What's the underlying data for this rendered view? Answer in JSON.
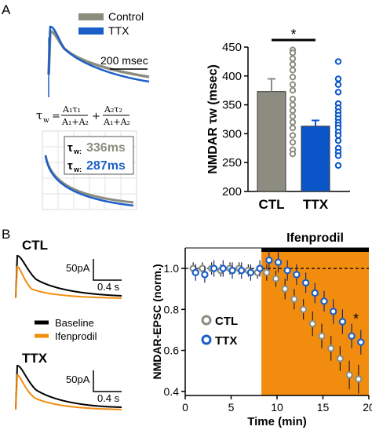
{
  "colors": {
    "control": "#8c8c7f",
    "ttx": "#1a5fc8",
    "baseline": "#000000",
    "ifenprodil": "#f28c0f",
    "ctl_bar": "#8c8c80",
    "ttx_bar": "#0a56c8",
    "box_grid": "#d9d9d9"
  },
  "panel_a": {
    "label": "A",
    "legend": {
      "control": "Control",
      "ttx": "TTX"
    },
    "scalebar": "200 msec",
    "formula": {
      "lhs": "τ",
      "lhs_sub": "w",
      "eq": "=",
      "t1_num": "A₁τ₁",
      "t1_den": "A₁+A₂",
      "plus": "+",
      "t2_num": "A₂τ₂",
      "t2_den": "A₁+A₂"
    },
    "decay_box": {
      "tau_prefix": "τ",
      "tau_sub": "w:",
      "ctl_value": "336ms",
      "ttx_value": "287ms"
    },
    "star": "*"
  },
  "panel_b": {
    "label": "B",
    "ctl_title": "CTL",
    "ttx_title": "TTX",
    "scale_amp": "50pA",
    "scale_time": "0.4 s",
    "legend": {
      "baseline": "Baseline",
      "ifenprodil": "Ifenprodil"
    },
    "drug_label": "Ifenprodil",
    "star": "*"
  },
  "chart_data": [
    {
      "type": "bar",
      "title": "",
      "xlabel": "",
      "ylabel": "NMDAR τw (msec)",
      "categories": [
        "CTL",
        "TTX"
      ],
      "values": [
        373,
        313
      ],
      "errors": [
        22,
        10
      ],
      "ylim": [
        200,
        450
      ],
      "yticks": [
        "200",
        "250",
        "300",
        "350",
        "400",
        "450"
      ],
      "points": {
        "CTL": [
          445,
          440,
          430,
          420,
          410,
          398,
          385,
          375,
          360,
          350,
          340,
          330,
          320,
          310,
          297,
          285,
          272,
          265
        ],
        "TTX": [
          425,
          395,
          385,
          372,
          352,
          345,
          338,
          332,
          326,
          320,
          315,
          310,
          303,
          297,
          288,
          275,
          268,
          262,
          245
        ]
      }
    },
    {
      "type": "scatter",
      "title": "",
      "xlabel": "Time (min)",
      "ylabel": "NMDAR-EPSC (norm.)",
      "xlim": [
        0,
        20
      ],
      "ylim": [
        0.38,
        1.1
      ],
      "xticks": [
        "0",
        "5",
        "10",
        "15",
        "20"
      ],
      "yticks": [
        "0.4",
        "0.6",
        "0.8",
        "1.0"
      ],
      "baseline_y": 1.0,
      "drug_period": [
        8.3,
        20
      ],
      "legend": [
        "CTL",
        "TTX"
      ],
      "series": [
        {
          "name": "CTL",
          "x": [
            1,
            2,
            3,
            4,
            5,
            6,
            7,
            8,
            9,
            10,
            11,
            12,
            13,
            14,
            15,
            16,
            17,
            18,
            19
          ],
          "y": [
            1.0,
            1.0,
            1.0,
            0.99,
            1.0,
            1.0,
            0.99,
            0.98,
            0.98,
            0.95,
            0.9,
            0.85,
            0.8,
            0.73,
            0.67,
            0.61,
            0.56,
            0.48,
            0.46
          ],
          "err": [
            0.03,
            0.03,
            0.03,
            0.03,
            0.03,
            0.03,
            0.03,
            0.03,
            0.04,
            0.04,
            0.05,
            0.05,
            0.05,
            0.06,
            0.06,
            0.06,
            0.06,
            0.07,
            0.07
          ]
        },
        {
          "name": "TTX",
          "x": [
            1,
            2,
            3,
            4,
            5,
            6,
            7,
            8,
            9,
            10,
            11,
            12,
            13,
            14,
            15,
            16,
            17,
            18,
            19
          ],
          "y": [
            0.98,
            0.97,
            1.0,
            1.0,
            0.99,
            0.99,
            0.98,
            1.0,
            1.04,
            1.03,
            0.99,
            0.97,
            0.93,
            0.88,
            0.84,
            0.79,
            0.74,
            0.67,
            0.64
          ],
          "err": [
            0.04,
            0.04,
            0.04,
            0.04,
            0.04,
            0.04,
            0.04,
            0.04,
            0.05,
            0.05,
            0.05,
            0.05,
            0.05,
            0.05,
            0.05,
            0.06,
            0.06,
            0.06,
            0.06
          ]
        }
      ]
    }
  ]
}
